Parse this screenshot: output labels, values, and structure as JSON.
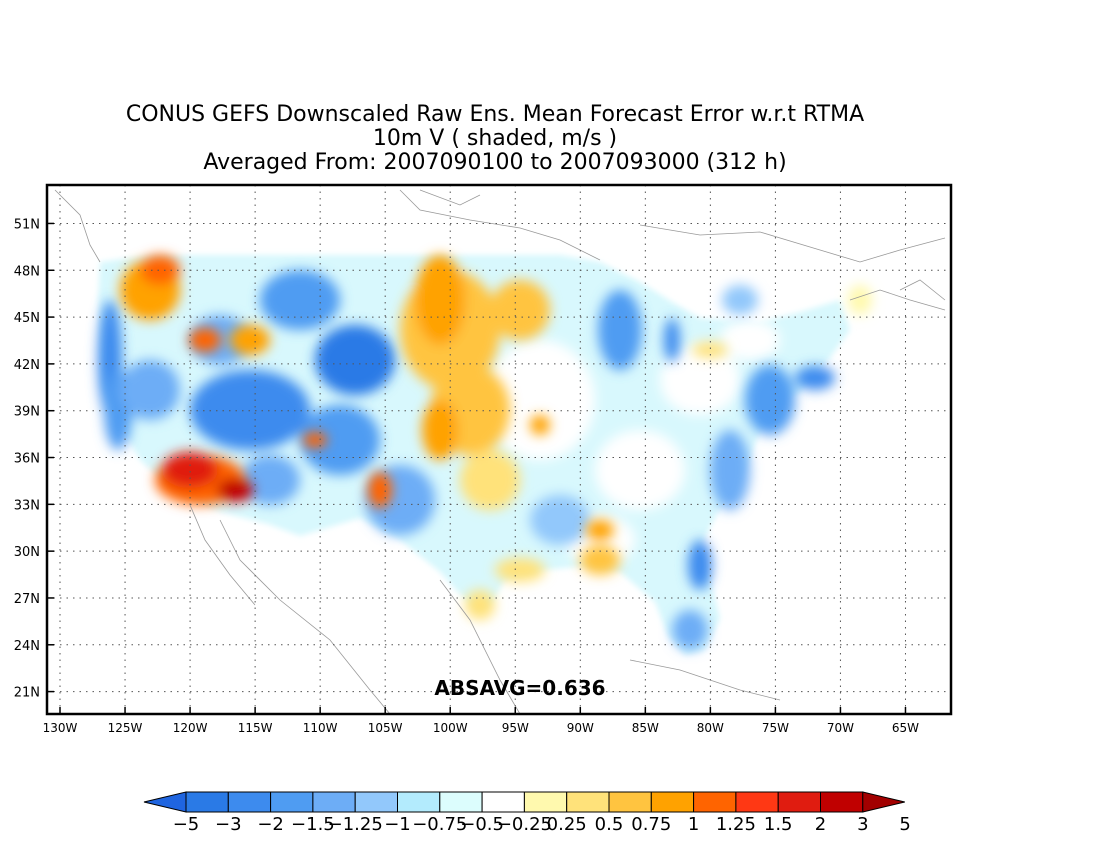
{
  "title": {
    "line1": "CONUS GEFS Downscaled Raw Ens. Mean Forecast Error w.r.t RTMA",
    "line2": "10m V ( shaded, m/s )",
    "line3": "Averaged From: 2007090100 to 2007093000 (312 h)"
  },
  "map": {
    "lat_labels": [
      "51N",
      "48N",
      "45N",
      "42N",
      "39N",
      "36N",
      "33N",
      "30N",
      "27N",
      "24N",
      "21N"
    ],
    "lat_values": [
      51,
      48,
      45,
      42,
      39,
      36,
      33,
      30,
      27,
      24,
      21
    ],
    "lon_labels": [
      "130W",
      "125W",
      "120W",
      "115W",
      "110W",
      "105W",
      "100W",
      "95W",
      "90W",
      "85W",
      "80W",
      "75W",
      "70W",
      "65W"
    ],
    "lon_values": [
      -130,
      -125,
      -120,
      -115,
      -110,
      -105,
      -100,
      -95,
      -90,
      -85,
      -80,
      -75,
      -70,
      -65
    ],
    "grid_lines": true,
    "stat_label": "ABSAVG=0.636"
  },
  "colorbar": {
    "labels": [
      "−5",
      "−3",
      "−2",
      "−1.5",
      "−1.25",
      "−1",
      "−0.75",
      "−0.5",
      "−0.25",
      "0.25",
      "0.5",
      "0.75",
      "1",
      "1.25",
      "1.5",
      "2",
      "3",
      "5"
    ],
    "colors": [
      "#1f65e0",
      "#2a7ae6",
      "#3d8bee",
      "#4f9cf2",
      "#6dadf6",
      "#92c8fb",
      "#b3ebfd",
      "#dcfdfd",
      "#ffffff",
      "#fff9ae",
      "#ffe27a",
      "#ffc440",
      "#ffa200",
      "#ff6400",
      "#ff3814",
      "#e01c10",
      "#c00000",
      "#a20000"
    ]
  }
}
